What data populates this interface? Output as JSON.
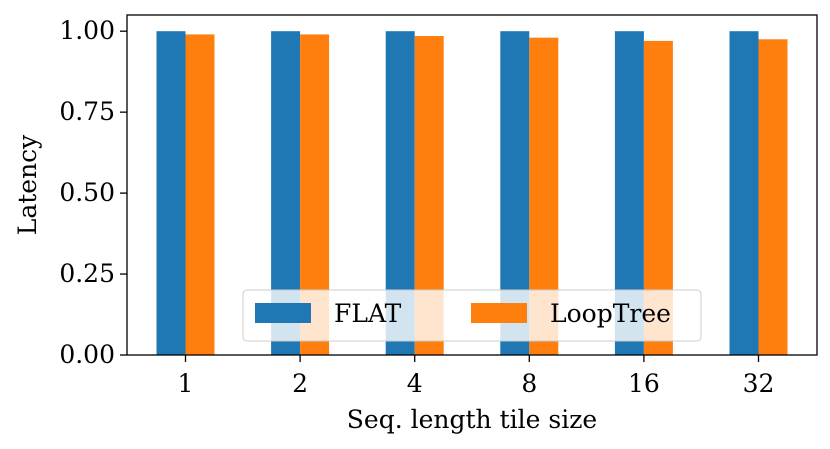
{
  "chart_data": {
    "type": "bar",
    "title": "",
    "xlabel": "Seq. length tile size",
    "ylabel": "Latency",
    "categories": [
      "1",
      "2",
      "4",
      "8",
      "16",
      "32"
    ],
    "series": [
      {
        "name": "FLAT",
        "color": "#1f77b4",
        "values": [
          1.0,
          1.0,
          1.0,
          1.0,
          1.0,
          1.0
        ]
      },
      {
        "name": "LoopTree",
        "color": "#ff7f0e",
        "values": [
          0.99,
          0.99,
          0.985,
          0.98,
          0.97,
          0.975
        ]
      }
    ],
    "ylim": [
      0,
      1.05
    ],
    "yticks": [
      "0.00",
      "0.25",
      "0.50",
      "0.75",
      "1.00"
    ],
    "grid": false,
    "legend": {
      "placement": "lower-center",
      "columns": 2
    }
  }
}
